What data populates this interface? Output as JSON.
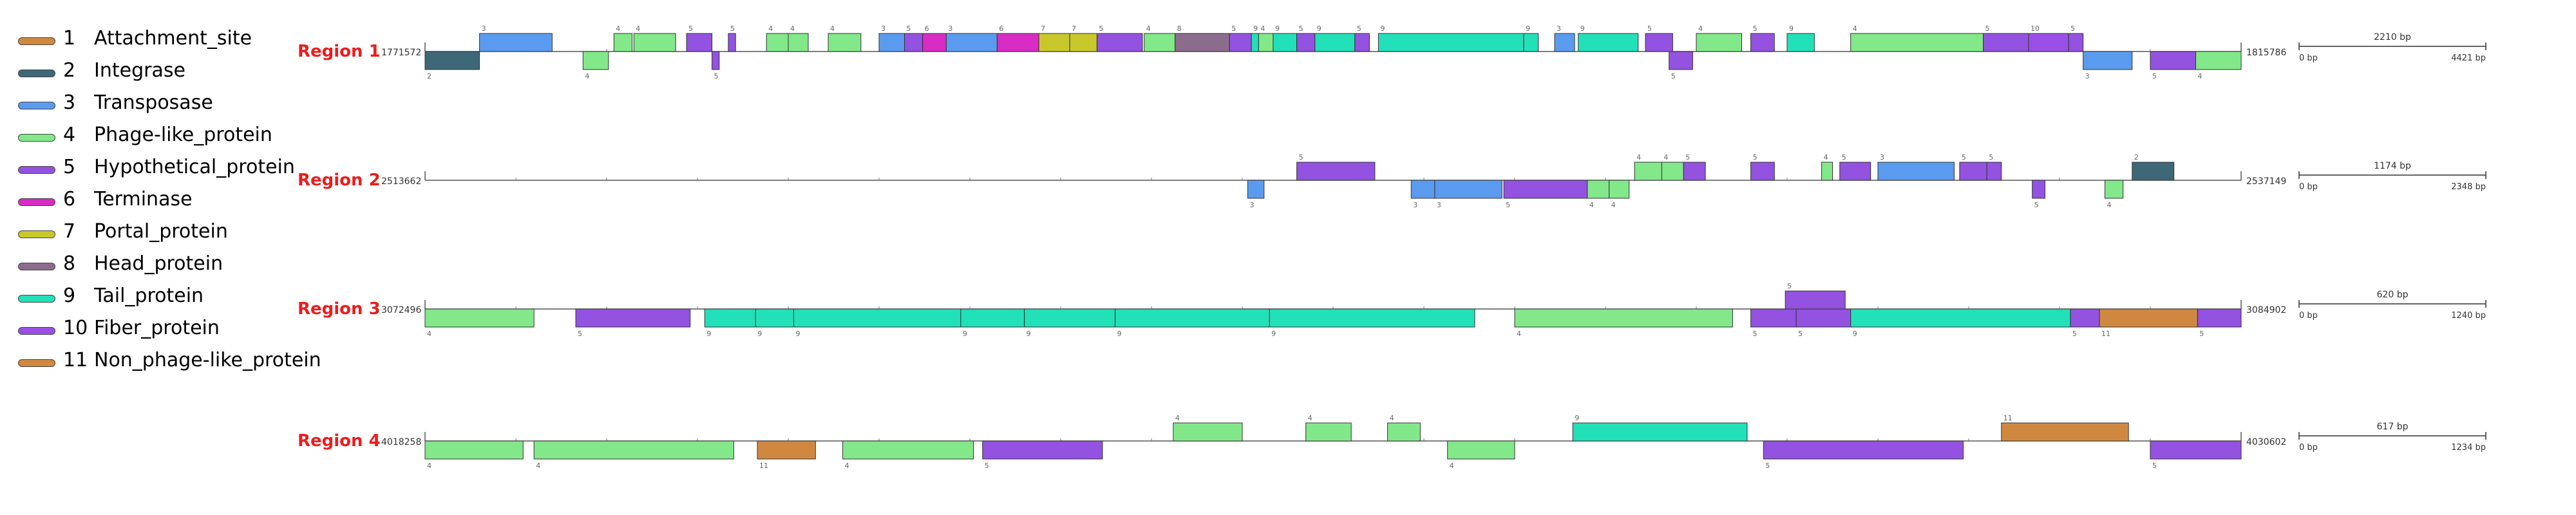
{
  "legend": [
    {
      "num": "1",
      "label": "Attachment_site",
      "color": "#d08840"
    },
    {
      "num": "2",
      "label": "Integrase",
      "color": "#3e6878"
    },
    {
      "num": "3",
      "label": "Transposase",
      "color": "#5b9bef"
    },
    {
      "num": "4",
      "label": "Phage-like_protein",
      "color": "#82e88a"
    },
    {
      "num": "5",
      "label": "Hypothetical_protein",
      "color": "#9352e0"
    },
    {
      "num": "6",
      "label": "Terminase",
      "color": "#d82cc4"
    },
    {
      "num": "7",
      "label": "Portal_protein",
      "color": "#c8c82a"
    },
    {
      "num": "8",
      "label": "Head_protein",
      "color": "#8c6c8c"
    },
    {
      "num": "9",
      "label": "Tail_protein",
      "color": "#22e0b8"
    },
    {
      "num": "10",
      "label": "Fiber_protein",
      "color": "#9a50e6"
    },
    {
      "num": "11",
      "label": "Non_phage-like_protein",
      "color": "#d08840"
    }
  ],
  "regions": [
    {
      "label": "Region 1",
      "start": "1771572",
      "end": "1815786",
      "length": 4421,
      "scale": {
        "label": "2210 bp",
        "min": "0 bp",
        "max": "4421 bp"
      },
      "genes": [
        {
          "s": 0,
          "e": 0.03,
          "strand": "-",
          "type": 2
        },
        {
          "s": 0.03,
          "e": 0.07,
          "strand": "+",
          "type": 3
        },
        {
          "s": 0.087,
          "e": 0.101,
          "strand": "-",
          "type": 4
        },
        {
          "s": 0.104,
          "e": 0.114,
          "strand": "+",
          "type": 4
        },
        {
          "s": 0.115,
          "e": 0.138,
          "strand": "+",
          "type": 4
        },
        {
          "s": 0.144,
          "e": 0.158,
          "strand": "+",
          "type": 5
        },
        {
          "s": 0.158,
          "e": 0.162,
          "strand": "-",
          "type": 5
        },
        {
          "s": 0.167,
          "e": 0.171,
          "strand": "+",
          "type": 5
        },
        {
          "s": 0.188,
          "e": 0.2,
          "strand": "+",
          "type": 4
        },
        {
          "s": 0.2,
          "e": 0.211,
          "strand": "+",
          "type": 4
        },
        {
          "s": 0.222,
          "e": 0.24,
          "strand": "+",
          "type": 4
        },
        {
          "s": 0.25,
          "e": 0.265,
          "strand": "+",
          "type": 3
        },
        {
          "s": 0.264,
          "e": 0.274,
          "strand": "+",
          "type": 5
        },
        {
          "s": 0.274,
          "e": 0.287,
          "strand": "+",
          "type": 6
        },
        {
          "s": 0.287,
          "e": 0.315,
          "strand": "+",
          "type": 3
        },
        {
          "s": 0.315,
          "e": 0.338,
          "strand": "+",
          "type": 6
        },
        {
          "s": 0.338,
          "e": 0.355,
          "strand": "+",
          "type": 7
        },
        {
          "s": 0.355,
          "e": 0.37,
          "strand": "+",
          "type": 7
        },
        {
          "s": 0.37,
          "e": 0.395,
          "strand": "+",
          "type": 5
        },
        {
          "s": 0.396,
          "e": 0.413,
          "strand": "+",
          "type": 4
        },
        {
          "s": 0.413,
          "e": 0.443,
          "strand": "+",
          "type": 8
        },
        {
          "s": 0.443,
          "e": 0.455,
          "strand": "+",
          "type": 5
        },
        {
          "s": 0.455,
          "e": 0.459,
          "strand": "+",
          "type": 9
        },
        {
          "s": 0.459,
          "e": 0.467,
          "strand": "+",
          "type": 4
        },
        {
          "s": 0.467,
          "e": 0.48,
          "strand": "+",
          "type": 9
        },
        {
          "s": 0.48,
          "e": 0.49,
          "strand": "+",
          "type": 5
        },
        {
          "s": 0.49,
          "e": 0.512,
          "strand": "+",
          "type": 9
        },
        {
          "s": 0.512,
          "e": 0.52,
          "strand": "+",
          "type": 5
        },
        {
          "s": 0.525,
          "e": 0.605,
          "strand": "+",
          "type": 9
        },
        {
          "s": 0.605,
          "e": 0.613,
          "strand": "+",
          "type": 9
        },
        {
          "s": 0.622,
          "e": 0.633,
          "strand": "+",
          "type": 3
        },
        {
          "s": 0.635,
          "e": 0.668,
          "strand": "+",
          "type": 9
        },
        {
          "s": 0.672,
          "e": 0.687,
          "strand": "+",
          "type": 5
        },
        {
          "s": 0.685,
          "e": 0.698,
          "strand": "-",
          "type": 5
        },
        {
          "s": 0.7,
          "e": 0.725,
          "strand": "+",
          "type": 4
        },
        {
          "s": 0.73,
          "e": 0.743,
          "strand": "+",
          "type": 5
        },
        {
          "s": 0.75,
          "e": 0.765,
          "strand": "+",
          "type": 9
        },
        {
          "s": 0.785,
          "e": 0.858,
          "strand": "+",
          "type": 4
        },
        {
          "s": 0.858,
          "e": 0.883,
          "strand": "+",
          "type": 5
        },
        {
          "s": 0.883,
          "e": 0.905,
          "strand": "+",
          "type": 10
        },
        {
          "s": 0.905,
          "e": 0.913,
          "strand": "+",
          "type": 5
        },
        {
          "s": 0.913,
          "e": 0.94,
          "strand": "-",
          "type": 3
        },
        {
          "s": 0.95,
          "e": 0.975,
          "strand": "-",
          "type": 5
        },
        {
          "s": 0.975,
          "e": 1.0,
          "strand": "-",
          "type": 4
        }
      ]
    },
    {
      "label": "Region 2",
      "start": "2513662",
      "end": "2537149",
      "length": 2348,
      "scale": {
        "label": "1174 bp",
        "min": "0 bp",
        "max": "2348 bp"
      },
      "genes": [
        {
          "s": 0.453,
          "e": 0.462,
          "strand": "-",
          "type": 3
        },
        {
          "s": 0.48,
          "e": 0.523,
          "strand": "+",
          "type": 5
        },
        {
          "s": 0.543,
          "e": 0.556,
          "strand": "-",
          "type": 3
        },
        {
          "s": 0.556,
          "e": 0.593,
          "strand": "-",
          "type": 3
        },
        {
          "s": 0.594,
          "e": 0.64,
          "strand": "-",
          "type": 5
        },
        {
          "s": 0.64,
          "e": 0.652,
          "strand": "-",
          "type": 4
        },
        {
          "s": 0.652,
          "e": 0.663,
          "strand": "-",
          "type": 4
        },
        {
          "s": 0.666,
          "e": 0.681,
          "strand": "+",
          "type": 4
        },
        {
          "s": 0.681,
          "e": 0.693,
          "strand": "+",
          "type": 4
        },
        {
          "s": 0.693,
          "e": 0.705,
          "strand": "+",
          "type": 5
        },
        {
          "s": 0.73,
          "e": 0.743,
          "strand": "+",
          "type": 5
        },
        {
          "s": 0.769,
          "e": 0.775,
          "strand": "+",
          "type": 4
        },
        {
          "s": 0.779,
          "e": 0.796,
          "strand": "+",
          "type": 5
        },
        {
          "s": 0.8,
          "e": 0.842,
          "strand": "+",
          "type": 3
        },
        {
          "s": 0.845,
          "e": 0.86,
          "strand": "+",
          "type": 5
        },
        {
          "s": 0.86,
          "e": 0.868,
          "strand": "+",
          "type": 5
        },
        {
          "s": 0.885,
          "e": 0.892,
          "strand": "-",
          "type": 5
        },
        {
          "s": 0.925,
          "e": 0.935,
          "strand": "-",
          "type": 4
        },
        {
          "s": 0.94,
          "e": 0.963,
          "strand": "+",
          "type": 2
        }
      ]
    },
    {
      "label": "Region 3",
      "start": "3072496",
      "end": "3084902",
      "length": 1240,
      "scale": {
        "label": "620 bp",
        "min": "0 bp",
        "max": "1240 bp"
      },
      "genes": [
        {
          "s": 0.0,
          "e": 0.06,
          "strand": "-",
          "type": 4
        },
        {
          "s": 0.083,
          "e": 0.146,
          "strand": "-",
          "type": 5
        },
        {
          "s": 0.154,
          "e": 0.184,
          "strand": "-",
          "type": 9
        },
        {
          "s": 0.182,
          "e": 0.203,
          "strand": "-",
          "type": 9
        },
        {
          "s": 0.203,
          "e": 0.295,
          "strand": "-",
          "type": 9
        },
        {
          "s": 0.295,
          "e": 0.33,
          "strand": "-",
          "type": 9
        },
        {
          "s": 0.33,
          "e": 0.38,
          "strand": "-",
          "type": 9
        },
        {
          "s": 0.38,
          "e": 0.465,
          "strand": "-",
          "type": 9
        },
        {
          "s": 0.465,
          "e": 0.578,
          "strand": "-",
          "type": 9
        },
        {
          "s": 0.6,
          "e": 0.72,
          "strand": "-",
          "type": 4
        },
        {
          "s": 0.73,
          "e": 0.755,
          "strand": "-",
          "type": 5
        },
        {
          "s": 0.749,
          "e": 0.782,
          "strand": "+",
          "type": 5
        },
        {
          "s": 0.755,
          "e": 0.785,
          "strand": "-",
          "type": 5
        },
        {
          "s": 0.785,
          "e": 0.906,
          "strand": "-",
          "type": 9
        },
        {
          "s": 0.906,
          "e": 0.922,
          "strand": "-",
          "type": 5
        },
        {
          "s": 0.922,
          "e": 0.976,
          "strand": "-",
          "type": 11
        },
        {
          "s": 0.976,
          "e": 1.0,
          "strand": "-",
          "type": 5
        }
      ]
    },
    {
      "label": "Region 4",
      "start": "4018258",
      "end": "4030602",
      "length": 1234,
      "scale": {
        "label": "617 bp",
        "min": "0 bp",
        "max": "1234 bp"
      },
      "genes": [
        {
          "s": 0.0,
          "e": 0.054,
          "strand": "-",
          "type": 4
        },
        {
          "s": 0.06,
          "e": 0.17,
          "strand": "-",
          "type": 4
        },
        {
          "s": 0.183,
          "e": 0.215,
          "strand": "-",
          "type": 11
        },
        {
          "s": 0.23,
          "e": 0.302,
          "strand": "-",
          "type": 4
        },
        {
          "s": 0.307,
          "e": 0.373,
          "strand": "-",
          "type": 5
        },
        {
          "s": 0.412,
          "e": 0.45,
          "strand": "+",
          "type": 4
        },
        {
          "s": 0.485,
          "e": 0.51,
          "strand": "+",
          "type": 4
        },
        {
          "s": 0.53,
          "e": 0.548,
          "strand": "+",
          "type": 4
        },
        {
          "s": 0.563,
          "e": 0.6,
          "strand": "-",
          "type": 4
        },
        {
          "s": 0.632,
          "e": 0.728,
          "strand": "+",
          "type": 9
        },
        {
          "s": 0.737,
          "e": 0.847,
          "strand": "-",
          "type": 5
        },
        {
          "s": 0.868,
          "e": 0.938,
          "strand": "+",
          "type": 11
        },
        {
          "s": 0.95,
          "e": 1.0,
          "strand": "-",
          "type": 5
        }
      ]
    }
  ]
}
